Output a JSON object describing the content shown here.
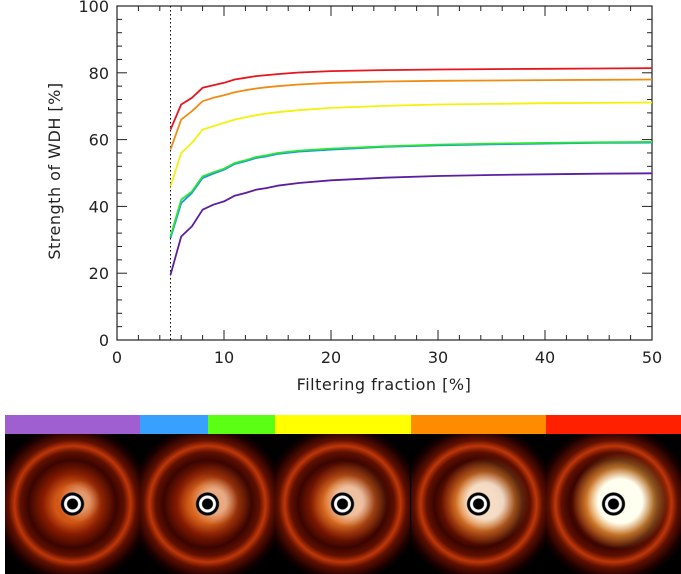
{
  "chart_data": {
    "type": "line",
    "xlabel": "Filtering fraction [%]",
    "ylabel": "Strength of WDH [%]",
    "xlim": [
      0,
      50
    ],
    "ylim": [
      0,
      100
    ],
    "xticks": [
      0,
      10,
      20,
      30,
      40,
      50
    ],
    "yticks": [
      0,
      20,
      40,
      60,
      80,
      100
    ],
    "grid": false,
    "vertical_marker": {
      "x": 5,
      "style": "dotted",
      "color": "#000000"
    },
    "x": [
      5,
      6,
      7,
      8,
      9,
      10,
      11,
      12,
      13,
      14,
      15,
      17,
      20,
      25,
      30,
      35,
      40,
      45,
      50
    ],
    "series": [
      {
        "color": "#e8141e",
        "values": [
          63,
          70.5,
          72.5,
          75.5,
          76.3,
          77,
          78,
          78.5,
          79,
          79.3,
          79.6,
          80.1,
          80.5,
          80.8,
          81,
          81.1,
          81.2,
          81.3,
          81.4
        ]
      },
      {
        "color": "#f08c14",
        "values": [
          57,
          66,
          68.5,
          71.5,
          72.5,
          73.3,
          74.2,
          74.8,
          75.3,
          75.7,
          76,
          76.5,
          77,
          77.4,
          77.6,
          77.7,
          77.8,
          77.9,
          78
        ]
      },
      {
        "color": "#f2f20a",
        "values": [
          46,
          56,
          59,
          63,
          64,
          65,
          66,
          66.7,
          67.3,
          67.8,
          68.2,
          68.8,
          69.5,
          70.1,
          70.5,
          70.7,
          70.9,
          71,
          71.1
        ]
      },
      {
        "color": "#1e8cf0",
        "values": [
          30.5,
          41,
          44,
          48.5,
          49.8,
          51,
          52.7,
          53.5,
          54.5,
          55,
          55.7,
          56.4,
          57,
          57.8,
          58.3,
          58.6,
          58.8,
          59,
          59.1
        ]
      },
      {
        "color": "#28e632",
        "values": [
          31,
          42,
          44.5,
          49,
          50.2,
          51.3,
          53,
          53.8,
          54.8,
          55.3,
          56,
          56.7,
          57.3,
          58,
          58.5,
          58.8,
          59,
          59.2,
          59.3
        ]
      },
      {
        "color": "#5a1ea0",
        "values": [
          19.5,
          31,
          34,
          39,
          40.5,
          41.5,
          43.2,
          44,
          45,
          45.5,
          46.2,
          47,
          47.8,
          48.6,
          49.1,
          49.4,
          49.6,
          49.8,
          49.9
        ]
      }
    ]
  },
  "color_bar": [
    {
      "color": "#a05fd0",
      "fraction": 0.2
    },
    {
      "color": "#38a0ff",
      "fraction": 0.1
    },
    {
      "color": "#5aff14",
      "fraction": 0.1
    },
    {
      "color": "#ffff00",
      "fraction": 0.2
    },
    {
      "color": "#ff8c00",
      "fraction": 0.2
    },
    {
      "color": "#ff2000",
      "fraction": 0.2
    }
  ],
  "image_panels": [
    {
      "halo_strength": 0.1
    },
    {
      "halo_strength": 0.25
    },
    {
      "halo_strength": 0.45
    },
    {
      "halo_strength": 0.7
    },
    {
      "halo_strength": 1.0
    }
  ]
}
